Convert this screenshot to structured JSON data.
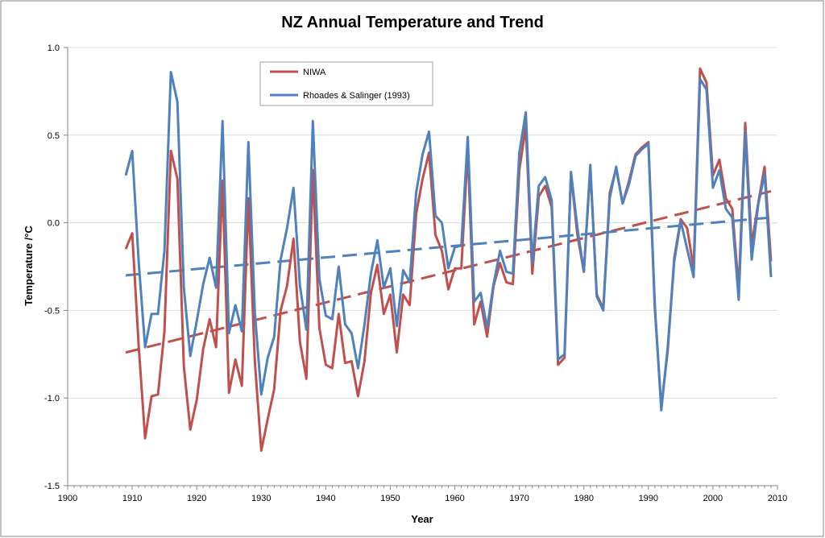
{
  "chart_data": {
    "type": "line",
    "title": "NZ Annual Temperature and Trend",
    "xlabel": "Year",
    "ylabel": "Temperature /°C",
    "xlim": [
      1900,
      2010
    ],
    "ylim": [
      -1.5,
      1.0
    ],
    "x_ticks": [
      "1900",
      "1910",
      "1920",
      "1930",
      "1940",
      "1950",
      "1960",
      "1970",
      "1980",
      "1990",
      "2000",
      "2010"
    ],
    "y_ticks": [
      "1.0",
      "0.5",
      "0.0",
      "-0.5",
      "-1.0",
      "-1.5"
    ],
    "grid": true,
    "legend": "top-left",
    "x": [
      1909,
      1910,
      1911,
      1912,
      1913,
      1914,
      1915,
      1916,
      1917,
      1918,
      1919,
      1920,
      1921,
      1922,
      1923,
      1924,
      1925,
      1926,
      1927,
      1928,
      1929,
      1930,
      1931,
      1932,
      1933,
      1934,
      1935,
      1936,
      1937,
      1938,
      1939,
      1940,
      1941,
      1942,
      1943,
      1944,
      1945,
      1946,
      1947,
      1948,
      1949,
      1950,
      1951,
      1952,
      1953,
      1954,
      1955,
      1956,
      1957,
      1958,
      1959,
      1960,
      1961,
      1962,
      1963,
      1964,
      1965,
      1966,
      1967,
      1968,
      1969,
      1970,
      1971,
      1972,
      1973,
      1974,
      1975,
      1976,
      1977,
      1978,
      1979,
      1980,
      1981,
      1982,
      1983,
      1984,
      1985,
      1986,
      1987,
      1988,
      1989,
      1990,
      1991,
      1992,
      1993,
      1994,
      1995,
      1996,
      1997,
      1998,
      1999,
      2000,
      2001,
      2002,
      2003,
      2004,
      2005,
      2006,
      2007,
      2008,
      2009
    ],
    "series": [
      {
        "name": "NIWA",
        "color": "#c0504d",
        "values": [
          -0.15,
          -0.06,
          -0.7,
          -1.23,
          -0.99,
          -0.98,
          -0.62,
          0.41,
          0.25,
          -0.82,
          -1.18,
          -1.01,
          -0.72,
          -0.55,
          -0.71,
          0.24,
          -0.97,
          -0.78,
          -0.93,
          0.14,
          -0.79,
          -1.3,
          -1.12,
          -0.95,
          -0.5,
          -0.36,
          -0.09,
          -0.68,
          -0.89,
          0.3,
          -0.6,
          -0.81,
          -0.83,
          -0.52,
          -0.8,
          -0.79,
          -0.99,
          -0.79,
          -0.4,
          -0.24,
          -0.52,
          -0.41,
          -0.74,
          -0.41,
          -0.47,
          0.05,
          0.25,
          0.4,
          -0.07,
          -0.16,
          -0.38,
          -0.26,
          -0.26,
          0.42,
          -0.58,
          -0.45,
          -0.65,
          -0.36,
          -0.23,
          -0.34,
          -0.35,
          0.3,
          0.55,
          -0.29,
          0.15,
          0.21,
          0.09,
          -0.81,
          -0.77,
          0.28,
          -0.07,
          -0.28,
          0.31,
          -0.41,
          -0.49,
          0.17,
          0.31,
          0.11,
          0.24,
          0.39,
          0.43,
          0.46,
          -0.49,
          -1.05,
          -0.73,
          -0.2,
          0.02,
          -0.03,
          -0.26,
          0.88,
          0.8,
          0.27,
          0.36,
          0.14,
          0.08,
          -0.38,
          0.57,
          -0.13,
          0.11,
          0.32,
          -0.22
        ]
      },
      {
        "name": "Rhoades & Salinger (1993)",
        "color": "#4f81bd",
        "values": [
          0.27,
          0.41,
          -0.22,
          -0.71,
          -0.52,
          -0.52,
          -0.16,
          0.86,
          0.69,
          -0.37,
          -0.76,
          -0.56,
          -0.35,
          -0.2,
          -0.37,
          0.58,
          -0.63,
          -0.47,
          -0.62,
          0.46,
          -0.51,
          -0.98,
          -0.77,
          -0.65,
          -0.21,
          -0.03,
          0.2,
          -0.36,
          -0.61,
          0.58,
          -0.32,
          -0.53,
          -0.55,
          -0.25,
          -0.58,
          -0.63,
          -0.83,
          -0.58,
          -0.29,
          -0.1,
          -0.37,
          -0.26,
          -0.59,
          -0.27,
          -0.34,
          0.17,
          0.39,
          0.52,
          0.04,
          0.0,
          -0.26,
          -0.14,
          -0.13,
          0.49,
          -0.45,
          -0.4,
          -0.6,
          -0.35,
          -0.16,
          -0.28,
          -0.29,
          0.4,
          0.63,
          -0.23,
          0.21,
          0.26,
          0.13,
          -0.78,
          -0.75,
          0.29,
          -0.03,
          -0.28,
          0.33,
          -0.42,
          -0.5,
          0.14,
          0.32,
          0.11,
          0.22,
          0.38,
          0.42,
          0.45,
          -0.47,
          -1.07,
          -0.71,
          -0.22,
          0.01,
          -0.15,
          -0.31,
          0.82,
          0.76,
          0.2,
          0.3,
          0.08,
          0.03,
          -0.44,
          0.52,
          -0.21,
          0.1,
          0.28,
          -0.31
        ]
      }
    ],
    "trends": [
      {
        "series": "NIWA",
        "color": "#c0504d",
        "x": [
          1909,
          2009
        ],
        "y": [
          -0.74,
          0.18
        ]
      },
      {
        "series": "Rhoades & Salinger (1993)",
        "color": "#4f81bd",
        "x": [
          1909,
          2009
        ],
        "y": [
          -0.3,
          0.03
        ]
      }
    ],
    "colors": {
      "grid": "#dcdcdc",
      "axis": "#868686",
      "frame": "#868686"
    }
  }
}
